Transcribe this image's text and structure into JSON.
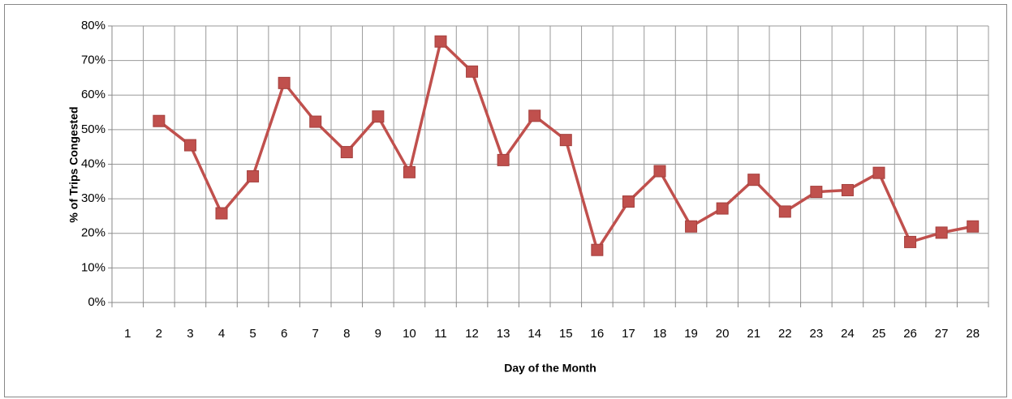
{
  "chart_data": {
    "type": "line",
    "xlabel": "Day of the Month",
    "ylabel": "% of Trips Congested",
    "categories": [
      1,
      2,
      3,
      4,
      5,
      6,
      7,
      8,
      9,
      10,
      11,
      12,
      13,
      14,
      15,
      16,
      17,
      18,
      19,
      20,
      21,
      22,
      23,
      24,
      25,
      26,
      27,
      28
    ],
    "series": [
      {
        "name": "% of Trips Congested",
        "color": "#c0504d",
        "values": [
          null,
          52.5,
          45.5,
          25.8,
          36.5,
          63.5,
          52.3,
          43.5,
          53.8,
          37.7,
          75.5,
          66.8,
          41.2,
          54,
          47,
          15.2,
          29.2,
          38,
          22,
          27.2,
          35.5,
          26.3,
          32,
          32.5,
          37.5,
          17.5,
          20.2,
          22
        ]
      }
    ],
    "ylim": [
      0,
      80
    ],
    "yticks": [
      {
        "value": 0,
        "label": "0%"
      },
      {
        "value": 10,
        "label": "10%"
      },
      {
        "value": 20,
        "label": "20%"
      },
      {
        "value": 30,
        "label": "30%"
      },
      {
        "value": 40,
        "label": "40%"
      },
      {
        "value": 50,
        "label": "50%"
      },
      {
        "value": 60,
        "label": "60%"
      },
      {
        "value": 70,
        "label": "70%"
      },
      {
        "value": 80,
        "label": "80%"
      }
    ],
    "grid": true
  }
}
